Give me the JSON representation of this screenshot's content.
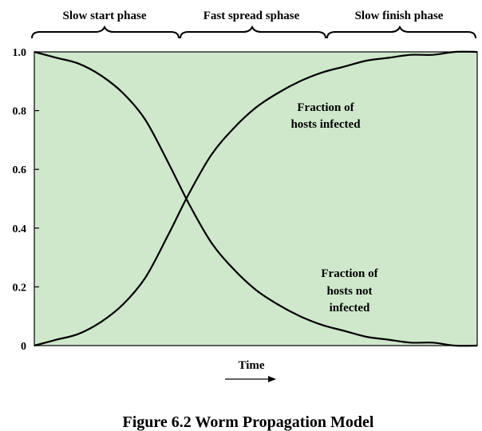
{
  "chart_data": {
    "type": "line",
    "title": "",
    "xlabel": "Time",
    "ylabel": "",
    "ylim": [
      0,
      1.0
    ],
    "y_ticks": [
      "0",
      "0.2",
      "0.4",
      "0.6",
      "0.8",
      "1.0"
    ],
    "x_ticks": [],
    "grid": false,
    "background_color": "#cfe8cc",
    "series": [
      {
        "x": [
          0,
          5,
          10,
          15,
          20,
          25,
          30,
          35,
          40,
          45,
          50,
          55,
          60,
          65,
          70,
          75,
          80,
          85,
          90,
          95,
          100
        ],
        "y": [
          0.0,
          0.02,
          0.04,
          0.08,
          0.14,
          0.23,
          0.37,
          0.52,
          0.65,
          0.74,
          0.81,
          0.86,
          0.9,
          0.93,
          0.95,
          0.97,
          0.98,
          0.99,
          0.99,
          1.0,
          1.0
        ],
        "color": "#000000"
      },
      {
        "x": [
          0,
          5,
          10,
          15,
          20,
          25,
          30,
          35,
          40,
          45,
          50,
          55,
          60,
          65,
          70,
          75,
          80,
          85,
          90,
          95,
          100
        ],
        "y": [
          1.0,
          0.98,
          0.96,
          0.92,
          0.86,
          0.77,
          0.63,
          0.48,
          0.35,
          0.26,
          0.19,
          0.14,
          0.1,
          0.07,
          0.05,
          0.03,
          0.02,
          0.01,
          0.01,
          0.0,
          0.0
        ],
        "color": "#000000"
      }
    ],
    "phases": [
      "Slow start phase",
      "Fast spread sphase",
      "Slow finish phase"
    ],
    "annotations": {
      "infected": [
        "Fraction of",
        "hosts infected"
      ],
      "not_infected": [
        "Fraction of",
        "hosts not",
        "infected"
      ]
    },
    "caption": "Figure 6.2   Worm Propagation Model"
  }
}
